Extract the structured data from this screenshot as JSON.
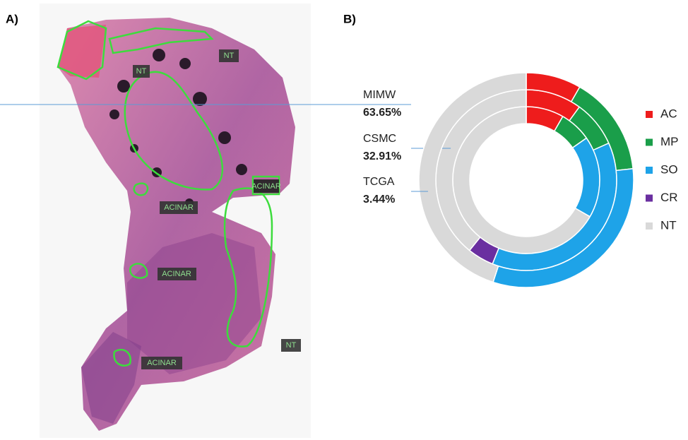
{
  "panel_labels": [
    "A)",
    "B)"
  ],
  "annotations": [
    {
      "text": "NT"
    },
    {
      "text": "NT"
    },
    {
      "text": "ACINAR"
    },
    {
      "text": "ACINAR"
    },
    {
      "text": "ACINAR"
    },
    {
      "text": "NT"
    },
    {
      "text": "ACINAR"
    }
  ],
  "chart_data": {
    "type": "nested-donut",
    "series": [
      {
        "name": "AC",
        "color": "#ee1c1c"
      },
      {
        "name": "MP",
        "color": "#1a9e4a"
      },
      {
        "name": "SO",
        "color": "#1ea3e8"
      },
      {
        "name": "CR",
        "color": "#6a2fa0"
      },
      {
        "name": "NT",
        "color": "#d9d9d9"
      }
    ],
    "rings": [
      {
        "name": "MIMW",
        "share": 63.65,
        "share_label": "63.65%",
        "values": [
          8.3,
          7,
          18,
          0,
          66.7
        ]
      },
      {
        "name": "CSMC",
        "share": 32.91,
        "share_label": "32.91%",
        "values": [
          10,
          8.3,
          37.8,
          4.7,
          39.2
        ]
      },
      {
        "name": "TCGA",
        "share": 3.44,
        "share_label": "3.44%",
        "values": [
          8.3,
          15,
          31.7,
          0,
          45
        ]
      }
    ]
  }
}
